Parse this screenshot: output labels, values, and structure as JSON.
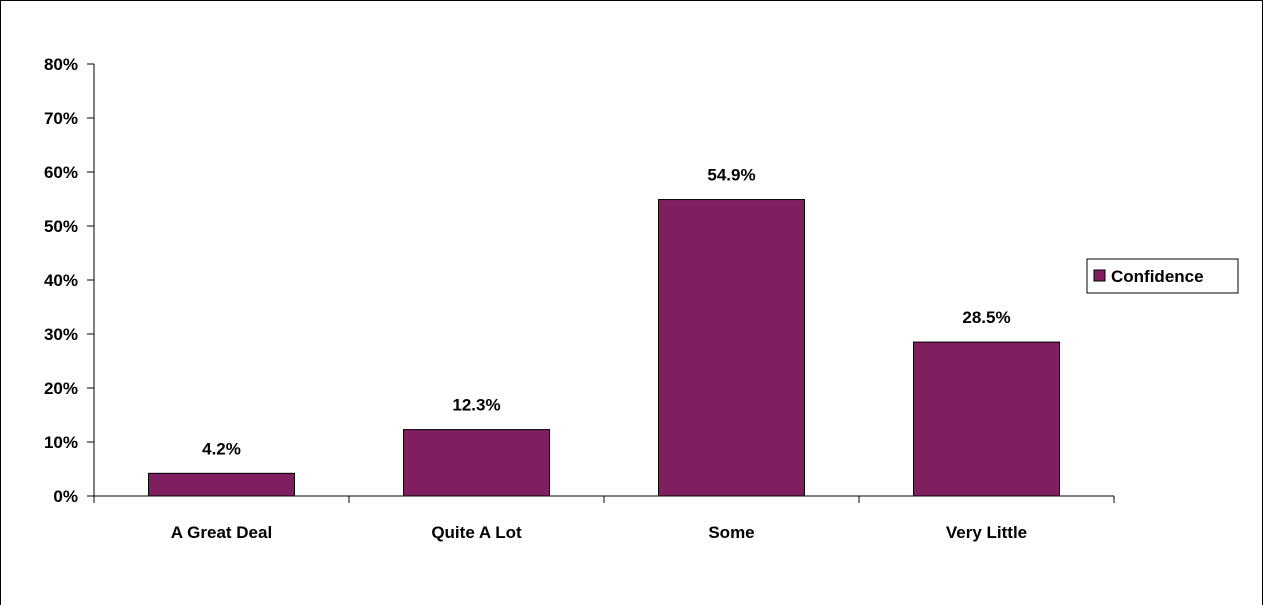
{
  "chart_data": {
    "type": "bar",
    "categories": [
      "A Great Deal",
      "Quite A Lot",
      "Some",
      "Very Little"
    ],
    "series": [
      {
        "name": "Confidence",
        "values": [
          4.2,
          12.3,
          54.9,
          28.5
        ]
      }
    ],
    "data_labels": [
      "4.2%",
      "12.3%",
      "54.9%",
      "28.5%"
    ],
    "ylim": [
      0,
      80
    ],
    "yticks": [
      0,
      10,
      20,
      30,
      40,
      50,
      60,
      70,
      80
    ],
    "ytick_labels": [
      "0%",
      "10%",
      "20%",
      "30%",
      "40%",
      "50%",
      "60%",
      "70%",
      "80%"
    ],
    "grid": false,
    "legend": "right",
    "bar_color": "#7f1f5f"
  }
}
